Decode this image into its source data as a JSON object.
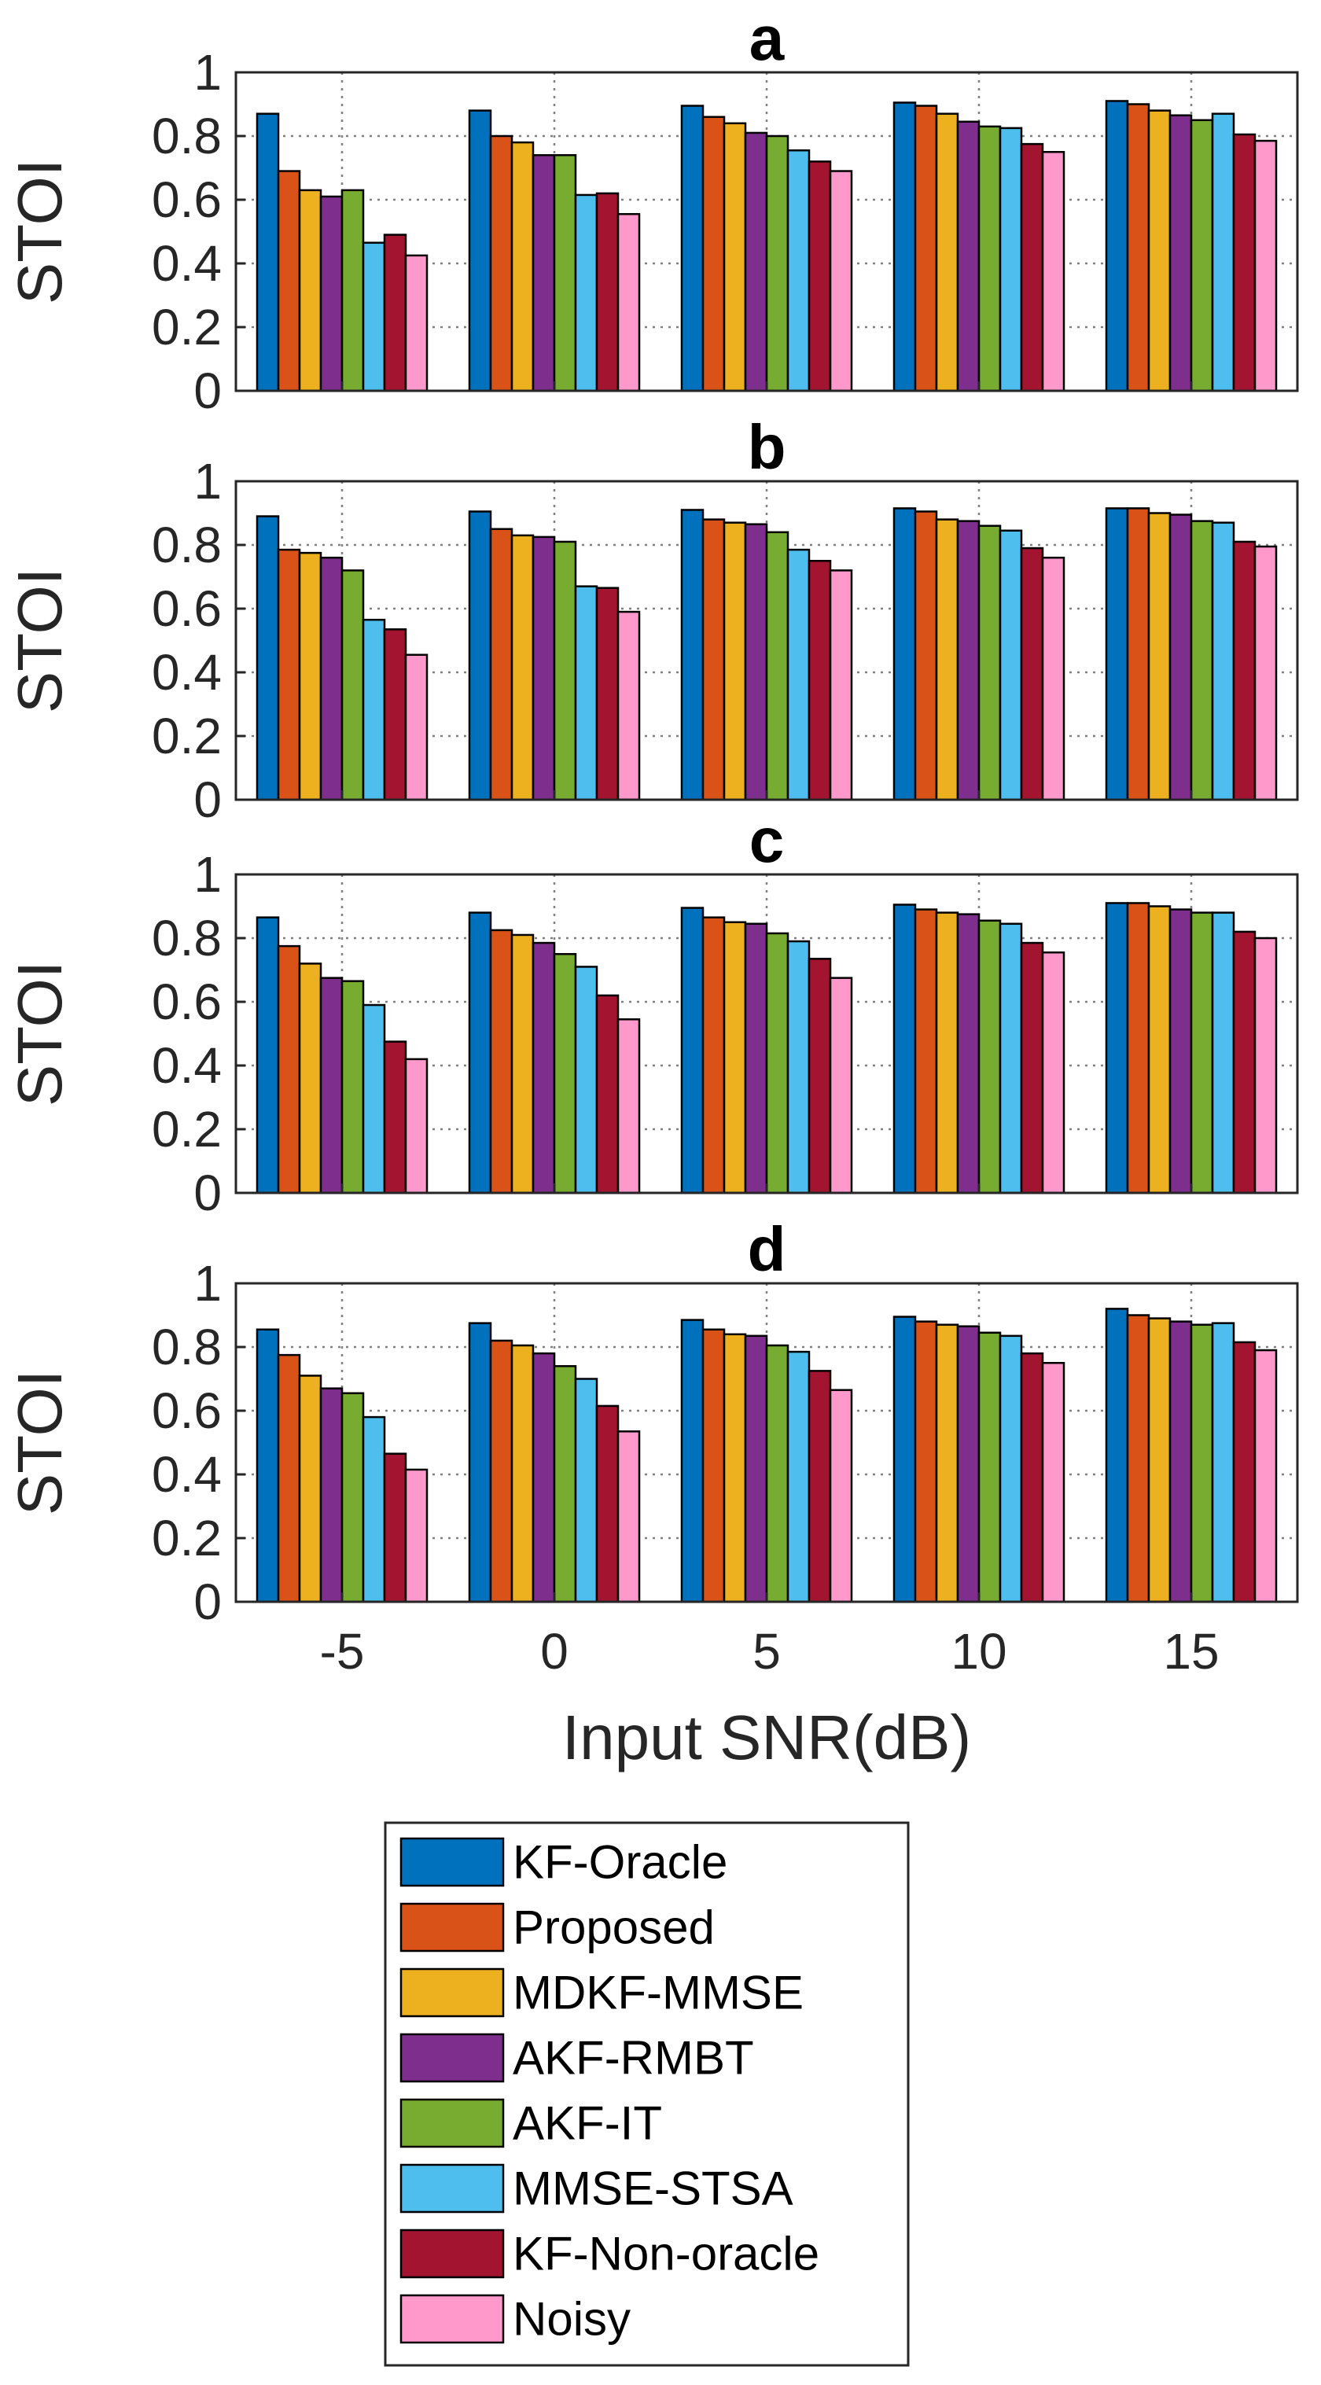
{
  "chart_data": [
    {
      "type": "bar",
      "title": "a",
      "ylabel": "STOI",
      "xlabel": "",
      "ylim": [
        0,
        1
      ],
      "yticks": [
        "0",
        "0.2",
        "0.4",
        "0.6",
        "0.8",
        "1"
      ],
      "categories": [
        "-5",
        "0",
        "5",
        "10",
        "15"
      ],
      "grid": true,
      "series": [
        {
          "name": "KF-Oracle",
          "values": [
            0.87,
            0.88,
            0.895,
            0.905,
            0.91
          ]
        },
        {
          "name": "Proposed",
          "values": [
            0.69,
            0.8,
            0.86,
            0.895,
            0.9
          ]
        },
        {
          "name": "MDKF-MMSE",
          "values": [
            0.63,
            0.78,
            0.84,
            0.87,
            0.88
          ]
        },
        {
          "name": "AKF-RMBT",
          "values": [
            0.61,
            0.74,
            0.81,
            0.845,
            0.865
          ]
        },
        {
          "name": "AKF-IT",
          "values": [
            0.63,
            0.74,
            0.8,
            0.83,
            0.85
          ]
        },
        {
          "name": "MMSE-STSA",
          "values": [
            0.465,
            0.615,
            0.755,
            0.825,
            0.87
          ]
        },
        {
          "name": "KF-Non-oracle",
          "values": [
            0.49,
            0.62,
            0.72,
            0.775,
            0.805
          ]
        },
        {
          "name": "Noisy",
          "values": [
            0.425,
            0.555,
            0.69,
            0.75,
            0.785
          ]
        }
      ]
    },
    {
      "type": "bar",
      "title": "b",
      "ylabel": "STOI",
      "xlabel": "",
      "ylim": [
        0,
        1
      ],
      "yticks": [
        "0",
        "0.2",
        "0.4",
        "0.6",
        "0.8",
        "1"
      ],
      "categories": [
        "-5",
        "0",
        "5",
        "10",
        "15"
      ],
      "grid": true,
      "series": [
        {
          "name": "KF-Oracle",
          "values": [
            0.89,
            0.905,
            0.91,
            0.915,
            0.915
          ]
        },
        {
          "name": "Proposed",
          "values": [
            0.785,
            0.85,
            0.88,
            0.905,
            0.915
          ]
        },
        {
          "name": "MDKF-MMSE",
          "values": [
            0.775,
            0.83,
            0.87,
            0.88,
            0.9
          ]
        },
        {
          "name": "AKF-RMBT",
          "values": [
            0.76,
            0.825,
            0.865,
            0.875,
            0.895
          ]
        },
        {
          "name": "AKF-IT",
          "values": [
            0.72,
            0.81,
            0.84,
            0.86,
            0.875
          ]
        },
        {
          "name": "MMSE-STSA",
          "values": [
            0.565,
            0.67,
            0.785,
            0.845,
            0.87
          ]
        },
        {
          "name": "KF-Non-oracle",
          "values": [
            0.535,
            0.665,
            0.75,
            0.79,
            0.81
          ]
        },
        {
          "name": "Noisy",
          "values": [
            0.455,
            0.59,
            0.72,
            0.76,
            0.795
          ]
        }
      ]
    },
    {
      "type": "bar",
      "title": "c",
      "ylabel": "STOI",
      "xlabel": "",
      "ylim": [
        0,
        1
      ],
      "yticks": [
        "0",
        "0.2",
        "0.4",
        "0.6",
        "0.8",
        "1"
      ],
      "categories": [
        "-5",
        "0",
        "5",
        "10",
        "15"
      ],
      "grid": true,
      "series": [
        {
          "name": "KF-Oracle",
          "values": [
            0.865,
            0.88,
            0.895,
            0.905,
            0.91
          ]
        },
        {
          "name": "Proposed",
          "values": [
            0.775,
            0.825,
            0.865,
            0.89,
            0.91
          ]
        },
        {
          "name": "MDKF-MMSE",
          "values": [
            0.72,
            0.81,
            0.85,
            0.88,
            0.9
          ]
        },
        {
          "name": "AKF-RMBT",
          "values": [
            0.675,
            0.785,
            0.845,
            0.875,
            0.89
          ]
        },
        {
          "name": "AKF-IT",
          "values": [
            0.665,
            0.75,
            0.815,
            0.855,
            0.88
          ]
        },
        {
          "name": "MMSE-STSA",
          "values": [
            0.59,
            0.71,
            0.79,
            0.845,
            0.88
          ]
        },
        {
          "name": "KF-Non-oracle",
          "values": [
            0.475,
            0.62,
            0.735,
            0.785,
            0.82
          ]
        },
        {
          "name": "Noisy",
          "values": [
            0.42,
            0.545,
            0.675,
            0.755,
            0.8
          ]
        }
      ]
    },
    {
      "type": "bar",
      "title": "d",
      "ylabel": "STOI",
      "xlabel": "Input SNR(dB)",
      "ylim": [
        0,
        1
      ],
      "yticks": [
        "0",
        "0.2",
        "0.4",
        "0.6",
        "0.8",
        "1"
      ],
      "categories": [
        "-5",
        "0",
        "5",
        "10",
        "15"
      ],
      "grid": true,
      "series": [
        {
          "name": "KF-Oracle",
          "values": [
            0.855,
            0.875,
            0.885,
            0.895,
            0.92
          ]
        },
        {
          "name": "Proposed",
          "values": [
            0.775,
            0.82,
            0.855,
            0.88,
            0.9
          ]
        },
        {
          "name": "MDKF-MMSE",
          "values": [
            0.71,
            0.805,
            0.84,
            0.87,
            0.89
          ]
        },
        {
          "name": "AKF-RMBT",
          "values": [
            0.67,
            0.78,
            0.835,
            0.865,
            0.88
          ]
        },
        {
          "name": "AKF-IT",
          "values": [
            0.655,
            0.74,
            0.805,
            0.845,
            0.87
          ]
        },
        {
          "name": "MMSE-STSA",
          "values": [
            0.58,
            0.7,
            0.785,
            0.835,
            0.875
          ]
        },
        {
          "name": "KF-Non-oracle",
          "values": [
            0.465,
            0.615,
            0.725,
            0.78,
            0.815
          ]
        },
        {
          "name": "Noisy",
          "values": [
            0.415,
            0.535,
            0.665,
            0.75,
            0.79
          ]
        }
      ]
    }
  ],
  "legend": {
    "position": "bottom-center",
    "entries": [
      {
        "label": "KF-Oracle",
        "color": "#0072BD"
      },
      {
        "label": "Proposed",
        "color": "#D95319"
      },
      {
        "label": "MDKF-MMSE",
        "color": "#EDB120"
      },
      {
        "label": "AKF-RMBT",
        "color": "#7E2F8E"
      },
      {
        "label": "AKF-IT",
        "color": "#77AC30"
      },
      {
        "label": "MMSE-STSA",
        "color": "#4DBEEE"
      },
      {
        "label": "KF-Non-oracle",
        "color": "#A2142F"
      },
      {
        "label": "Noisy",
        "color": "#FF99CC"
      }
    ]
  }
}
